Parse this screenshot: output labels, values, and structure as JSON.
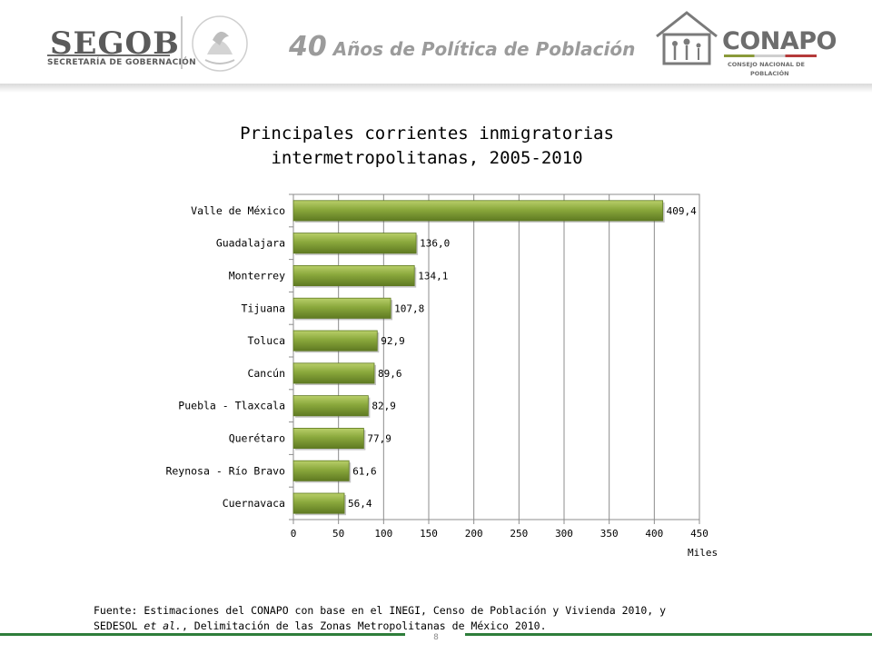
{
  "header": {
    "segob_logo": "SEGOB",
    "segob_subtitle": "SECRETARÍA DE GOBERNACIÓN",
    "seal_text": "ESTADOS UNIDOS MEXICANOS",
    "tagline_number": "40",
    "tagline_text": "Años de Política de Población",
    "conapo_logo": "CONAPO",
    "conapo_subtitle_1": "CONSEJO NACIONAL DE",
    "conapo_subtitle_2": "POBLACIÓN"
  },
  "chart_data": {
    "type": "bar",
    "orientation": "horizontal",
    "title_line1": "Principales corrientes  inmigratorias",
    "title_line2": "intermetropolitanas, 2005-2010",
    "categories": [
      "Valle de México",
      "Guadalajara",
      "Monterrey",
      "Tijuana",
      "Toluca",
      "Cancún",
      "Puebla - Tlaxcala",
      "Querétaro",
      "Reynosa - Río Bravo",
      "Cuernavaca"
    ],
    "values": [
      409.4,
      136.0,
      134.1,
      107.8,
      92.9,
      89.6,
      82.9,
      77.9,
      61.6,
      56.4
    ],
    "value_labels": [
      "409,4",
      "136,0",
      "134,1",
      "107,8",
      "92,9",
      "89,6",
      "82,9",
      "77,9",
      "61,6",
      "56,4"
    ],
    "x_ticks": [
      "0",
      "50",
      "100",
      "150",
      "200",
      "250",
      "300",
      "350",
      "400",
      "450"
    ],
    "xlim": [
      0,
      450
    ],
    "xlabel": "Miles",
    "grid": "vertical",
    "bar_color": "#8aa83c"
  },
  "source": {
    "line1": "Fuente: Estimaciones del CONAPO con base en el INEGI, Censo de Población y Vivienda 2010, y",
    "line2_pre": "SEDESOL ",
    "line2_italic": "et al.",
    "line2_post": ", Delimitación de las Zonas Metropolitanas de México  2010."
  },
  "page_number": "8"
}
